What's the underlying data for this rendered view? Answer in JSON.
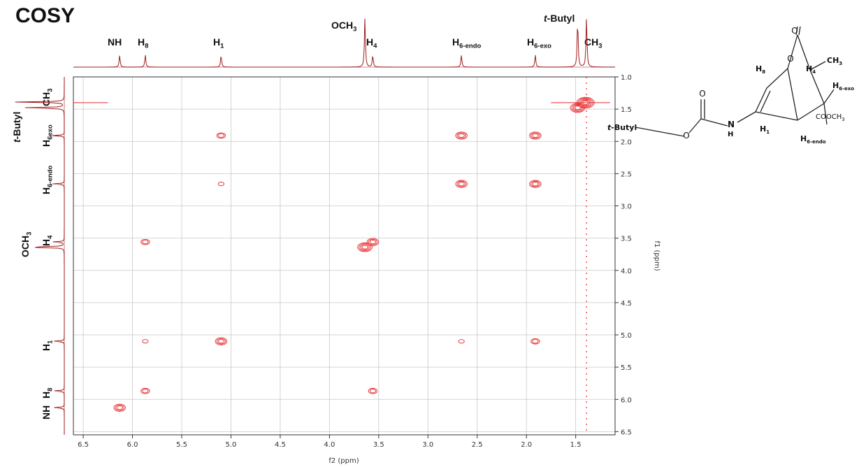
{
  "title": "COSY",
  "colors": {
    "contour": "#e8282b",
    "projection": "#9e1b1b",
    "grid": "#c8c8c8",
    "axis": "#333333"
  },
  "chart_data": {
    "type": "heatmap",
    "title": "COSY",
    "xlabel": "f2 (ppm)",
    "ylabel": "f1 (ppm)",
    "xlim": [
      6.6,
      1.1
    ],
    "ylim": [
      1.0,
      6.55
    ],
    "x_ticks": [
      6.5,
      6.0,
      5.5,
      5.0,
      4.5,
      4.0,
      3.5,
      3.0,
      2.5,
      2.0,
      1.5
    ],
    "y_ticks": [
      1.0,
      1.5,
      2.0,
      2.5,
      3.0,
      3.5,
      4.0,
      4.5,
      5.0,
      5.5,
      6.0,
      6.5
    ],
    "x_tick_labels": [
      "6.5",
      "6.0",
      "5.5",
      "5.0",
      "4.5",
      "4.0",
      "3.5",
      "3.0",
      "2.5",
      "2.0",
      "1.5"
    ],
    "y_tick_labels": [
      "1.0",
      "1.5",
      "2.0",
      "2.5",
      "3.0",
      "3.5",
      "4.0",
      "4.5",
      "5.0",
      "5.5",
      "6.0",
      "6.5"
    ],
    "grid": true,
    "signals": [
      {
        "name": "NH",
        "ppm": 6.13
      },
      {
        "name": "H8",
        "ppm": 5.87
      },
      {
        "name": "H1",
        "ppm": 5.1
      },
      {
        "name": "OCH3",
        "ppm": 3.64
      },
      {
        "name": "H4",
        "ppm": 3.56
      },
      {
        "name": "H6-endo",
        "ppm": 2.66
      },
      {
        "name": "H6-exo",
        "ppm": 1.91
      },
      {
        "name": "t-Butyl",
        "ppm": 1.48
      },
      {
        "name": "CH3",
        "ppm": 1.39
      }
    ],
    "cross_peaks": [
      {
        "f2": 6.13,
        "f1": 6.13,
        "intensity": 3
      },
      {
        "f2": 5.87,
        "f1": 5.87,
        "intensity": 2
      },
      {
        "f2": 5.87,
        "f1": 3.56,
        "intensity": 2
      },
      {
        "f2": 5.87,
        "f1": 5.1,
        "intensity": 1
      },
      {
        "f2": 5.1,
        "f1": 5.1,
        "intensity": 3
      },
      {
        "f2": 5.1,
        "f1": 1.91,
        "intensity": 2
      },
      {
        "f2": 5.1,
        "f1": 2.66,
        "intensity": 1
      },
      {
        "f2": 3.56,
        "f1": 3.56,
        "intensity": 3
      },
      {
        "f2": 3.56,
        "f1": 5.87,
        "intensity": 2
      },
      {
        "f2": 2.66,
        "f1": 2.66,
        "intensity": 3
      },
      {
        "f2": 2.66,
        "f1": 1.91,
        "intensity": 3
      },
      {
        "f2": 2.66,
        "f1": 5.1,
        "intensity": 1
      },
      {
        "f2": 1.91,
        "f1": 1.91,
        "intensity": 3
      },
      {
        "f2": 1.91,
        "f1": 2.66,
        "intensity": 3
      },
      {
        "f2": 1.91,
        "f1": 5.1,
        "intensity": 2
      },
      {
        "f2": 3.64,
        "f1": 3.64,
        "intensity": 4
      },
      {
        "f2": 1.4,
        "f1": 1.4,
        "intensity": 5
      },
      {
        "f2": 1.48,
        "f1": 1.48,
        "intensity": 4
      }
    ]
  },
  "labels": {
    "f2": {
      "nh": "NH",
      "h8": {
        "base": "H",
        "sub": "8"
      },
      "h1": {
        "base": "H",
        "sub": "1"
      },
      "och3": {
        "base": "OCH",
        "sub": "3"
      },
      "h4": {
        "base": "H",
        "sub": "4"
      },
      "h6endo": {
        "base": "H",
        "sub": "6-endo"
      },
      "h6exo": {
        "base": "H",
        "sub": "6-exo"
      },
      "tbutyl": {
        "pre": "t",
        "rest": "-Butyl"
      },
      "ch3": {
        "base": "CH",
        "sub": "3"
      }
    },
    "f1": {
      "ch3": {
        "base": "CH",
        "sub": "3"
      },
      "tbutyl": {
        "pre": "t",
        "rest": "-Butyl"
      },
      "h6exo": {
        "base": "H",
        "sub": "6exo"
      },
      "h6endo": {
        "base": "H",
        "sub": "6-endo"
      },
      "h4": {
        "base": "H",
        "sub": "4"
      },
      "och3": {
        "base": "OCH",
        "sub": "3"
      },
      "h1": {
        "base": "H",
        "sub": "1"
      },
      "h8": {
        "base": "H",
        "sub": "8"
      },
      "nh": "NH"
    }
  },
  "structure": {
    "o_carbonyl": "O",
    "o_ring": "O",
    "o_carbamate": "O",
    "o_ester": "O",
    "h8": {
      "base": "H",
      "sub": "8"
    },
    "h4": {
      "base": "H",
      "sub": "4"
    },
    "ch3": {
      "base": "CH",
      "sub": "3"
    },
    "h6exo": {
      "base": "H",
      "sub": "6-exo"
    },
    "cooch3": {
      "base": "COOCH",
      "sub": "3"
    },
    "tbutyl": {
      "pre": "t",
      "rest": "-Butyl"
    },
    "nh_n": "N",
    "nh_h": "H",
    "h1": {
      "base": "H",
      "sub": "1"
    },
    "h6endo": {
      "base": "H",
      "sub": "6-endo"
    }
  }
}
